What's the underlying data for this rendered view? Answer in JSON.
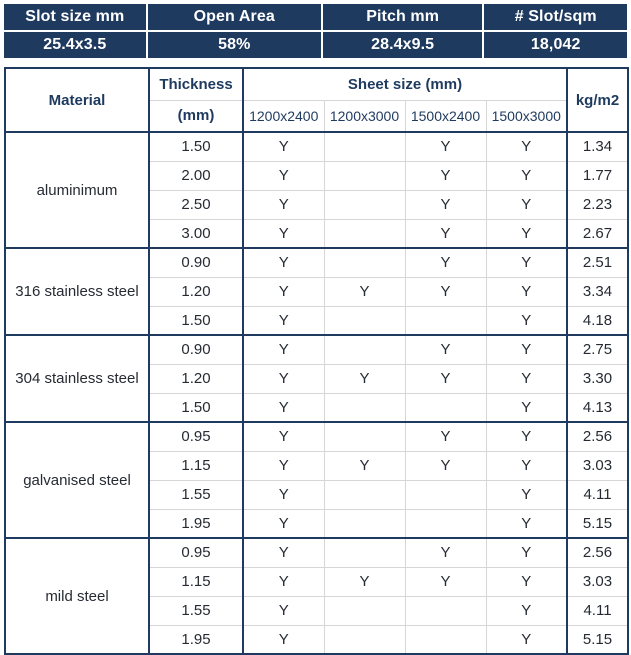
{
  "colors": {
    "navy": "#1f3a5f",
    "grid_minor": "#d6d6d6",
    "body_text": "#262b33",
    "summary_text": "#ffffff"
  },
  "summary": {
    "columns": [
      {
        "label": "Slot size mm",
        "value": "25.4x3.5"
      },
      {
        "label": "Open Area",
        "value": "58%"
      },
      {
        "label": "Pitch mm",
        "value": "28.4x9.5"
      },
      {
        "label": "# Slot/sqm",
        "value": "18,042"
      }
    ]
  },
  "table": {
    "headers": {
      "material": "Material",
      "thickness_line1": "Thickness",
      "thickness_line2": "(mm)",
      "sheet_size": "Sheet size (mm)",
      "sheet_columns": [
        "1200x2400",
        "1200x3000",
        "1500x2400",
        "1500x3000"
      ],
      "weight": "kg/m2"
    },
    "groups": [
      {
        "material": "aluminimum",
        "rows": [
          {
            "thickness": "1.50",
            "sizes": [
              "Y",
              "",
              "Y",
              "Y"
            ],
            "weight": "1.34"
          },
          {
            "thickness": "2.00",
            "sizes": [
              "Y",
              "",
              "Y",
              "Y"
            ],
            "weight": "1.77"
          },
          {
            "thickness": "2.50",
            "sizes": [
              "Y",
              "",
              "Y",
              "Y"
            ],
            "weight": "2.23"
          },
          {
            "thickness": "3.00",
            "sizes": [
              "Y",
              "",
              "Y",
              "Y"
            ],
            "weight": "2.67"
          }
        ]
      },
      {
        "material": "316 stainless steel",
        "rows": [
          {
            "thickness": "0.90",
            "sizes": [
              "Y",
              "",
              "Y",
              "Y"
            ],
            "weight": "2.51"
          },
          {
            "thickness": "1.20",
            "sizes": [
              "Y",
              "Y",
              "Y",
              "Y"
            ],
            "weight": "3.34"
          },
          {
            "thickness": "1.50",
            "sizes": [
              "Y",
              "",
              "",
              "Y"
            ],
            "weight": "4.18"
          }
        ]
      },
      {
        "material": "304 stainless steel",
        "rows": [
          {
            "thickness": "0.90",
            "sizes": [
              "Y",
              "",
              "Y",
              "Y"
            ],
            "weight": "2.75"
          },
          {
            "thickness": "1.20",
            "sizes": [
              "Y",
              "Y",
              "Y",
              "Y"
            ],
            "weight": "3.30"
          },
          {
            "thickness": "1.50",
            "sizes": [
              "Y",
              "",
              "",
              "Y"
            ],
            "weight": "4.13"
          }
        ]
      },
      {
        "material": "galvanised steel",
        "rows": [
          {
            "thickness": "0.95",
            "sizes": [
              "Y",
              "",
              "Y",
              "Y"
            ],
            "weight": "2.56"
          },
          {
            "thickness": "1.15",
            "sizes": [
              "Y",
              "Y",
              "Y",
              "Y"
            ],
            "weight": "3.03"
          },
          {
            "thickness": "1.55",
            "sizes": [
              "Y",
              "",
              "",
              "Y"
            ],
            "weight": "4.11"
          },
          {
            "thickness": "1.95",
            "sizes": [
              "Y",
              "",
              "",
              "Y"
            ],
            "weight": "5.15"
          }
        ]
      },
      {
        "material": "mild steel",
        "rows": [
          {
            "thickness": "0.95",
            "sizes": [
              "Y",
              "",
              "Y",
              "Y"
            ],
            "weight": "2.56"
          },
          {
            "thickness": "1.15",
            "sizes": [
              "Y",
              "Y",
              "Y",
              "Y"
            ],
            "weight": "3.03"
          },
          {
            "thickness": "1.55",
            "sizes": [
              "Y",
              "",
              "",
              "Y"
            ],
            "weight": "4.11"
          },
          {
            "thickness": "1.95",
            "sizes": [
              "Y",
              "",
              "",
              "Y"
            ],
            "weight": "5.15"
          }
        ]
      }
    ]
  }
}
